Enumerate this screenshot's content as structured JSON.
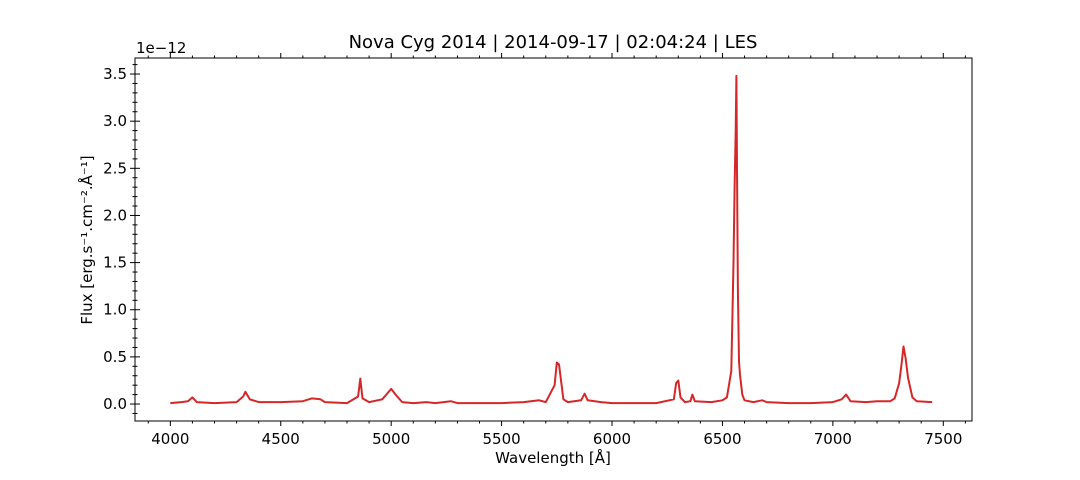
{
  "chart_data": {
    "type": "line",
    "title": "Nova Cyg 2014 | 2014-09-17 | 02:04:24 | LES",
    "xlabel": "Wavelength [Å]",
    "ylabel": "Flux [erg.s⁻¹.cm⁻².Å⁻¹]",
    "y_offset_label": "1e−12",
    "xlim": [
      3840,
      7630
    ],
    "ylim": [
      -0.18,
      3.67
    ],
    "y_multiplier": 1e-12,
    "x_ticks": [
      4000,
      4500,
      5000,
      5500,
      6000,
      6500,
      7000,
      7500
    ],
    "x_tick_labels": [
      "4000",
      "4500",
      "5000",
      "5500",
      "6000",
      "6500",
      "7000",
      "7500"
    ],
    "y_ticks": [
      0,
      0.5,
      1.0,
      1.5,
      2.0,
      2.5,
      3.0,
      3.5
    ],
    "y_tick_labels": [
      "0.0",
      "0.5",
      "1.0",
      "1.5",
      "2.0",
      "2.5",
      "3.0",
      "3.5"
    ],
    "grid": false,
    "series": [
      {
        "color": "#d62728",
        "x": [
          4000,
          4050,
          4080,
          4100,
          4120,
          4200,
          4300,
          4330,
          4340,
          4360,
          4400,
          4500,
          4600,
          4640,
          4680,
          4700,
          4800,
          4850,
          4860,
          4870,
          4900,
          4960,
          5000,
          5020,
          5050,
          5100,
          5160,
          5200,
          5270,
          5300,
          5400,
          5500,
          5600,
          5670,
          5700,
          5740,
          5750,
          5760,
          5780,
          5800,
          5860,
          5876,
          5890,
          5950,
          6000,
          6100,
          6200,
          6280,
          6290,
          6300,
          6310,
          6330,
          6355,
          6364,
          6375,
          6450,
          6500,
          6520,
          6540,
          6550,
          6555,
          6560,
          6563,
          6566,
          6570,
          6575,
          6580,
          6590,
          6600,
          6640,
          6680,
          6700,
          6800,
          6900,
          7000,
          7040,
          7060,
          7080,
          7150,
          7200,
          7260,
          7280,
          7300,
          7310,
          7320,
          7330,
          7340,
          7360,
          7380,
          7450
        ],
        "y": [
          0.01,
          0.02,
          0.03,
          0.07,
          0.02,
          0.01,
          0.02,
          0.08,
          0.13,
          0.05,
          0.02,
          0.02,
          0.03,
          0.06,
          0.05,
          0.02,
          0.01,
          0.08,
          0.27,
          0.06,
          0.02,
          0.05,
          0.16,
          0.1,
          0.02,
          0.01,
          0.02,
          0.01,
          0.03,
          0.01,
          0.01,
          0.01,
          0.02,
          0.04,
          0.02,
          0.2,
          0.44,
          0.42,
          0.05,
          0.02,
          0.04,
          0.11,
          0.04,
          0.02,
          0.01,
          0.01,
          0.01,
          0.05,
          0.22,
          0.25,
          0.07,
          0.02,
          0.03,
          0.1,
          0.03,
          0.02,
          0.04,
          0.07,
          0.35,
          1.5,
          2.3,
          2.9,
          3.48,
          2.5,
          1.2,
          0.45,
          0.3,
          0.1,
          0.04,
          0.02,
          0.04,
          0.02,
          0.01,
          0.01,
          0.02,
          0.05,
          0.1,
          0.03,
          0.02,
          0.03,
          0.03,
          0.06,
          0.22,
          0.4,
          0.61,
          0.48,
          0.28,
          0.07,
          0.03,
          0.02
        ]
      }
    ]
  }
}
